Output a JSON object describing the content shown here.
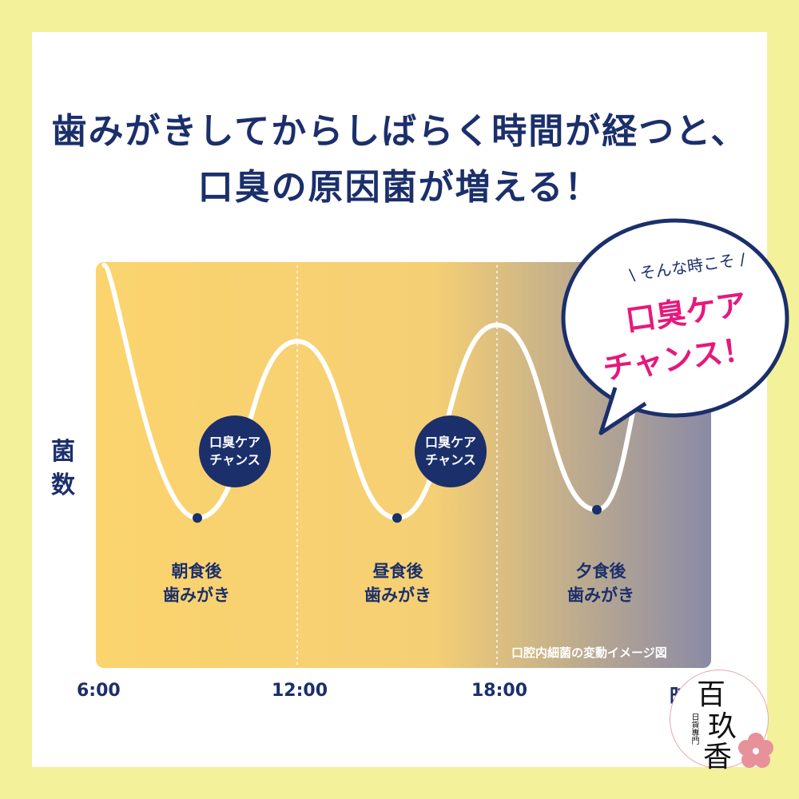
{
  "title": {
    "line1": "歯みがきしてからしばらく時間が経つと、",
    "line2": "口臭の原因菌が増える！"
  },
  "axes": {
    "ylabel_line1": "菌",
    "ylabel_line2": "数",
    "xlabel": "時間",
    "ticks": [
      "6:00",
      "12:00",
      "18:00"
    ]
  },
  "annotations": {
    "brushing": [
      {
        "line1": "朝食後",
        "line2": "歯みがき"
      },
      {
        "line1": "昼食後",
        "line2": "歯みがき"
      },
      {
        "line1": "夕食後",
        "line2": "歯みがき"
      }
    ],
    "badge": {
      "line1": "口臭ケア",
      "line2": "チャンス"
    },
    "caption": "口腔内細菌の変動イメージ図"
  },
  "bubble": {
    "lead": "\\ そんな時こそ /",
    "main_line1": "口臭ケア",
    "main_line2": "チャンス！"
  },
  "stamp": {
    "char1": "百",
    "char2": "玖",
    "char3": "香",
    "sub": "日貨專門"
  },
  "colors": {
    "navy": "#1b2f6b",
    "pink": "#e5197c",
    "panel_warm": "#fbd46e",
    "panel_cool": "#8a8aa6",
    "background": "#f3f199"
  },
  "chart_data": {
    "type": "line",
    "title": "歯みがきしてからしばらく時間が経つと、口臭の原因菌が増える！",
    "xlabel": "時間",
    "ylabel": "菌数",
    "x_ticks": [
      "6:00",
      "12:00",
      "18:00"
    ],
    "xlim_hours": [
      6,
      23
    ],
    "ylim": [
      0,
      1
    ],
    "y_scale": "relative (no numeric ticks)",
    "points": [
      {
        "t": 6.2,
        "y": 1.0
      },
      {
        "t": 9.0,
        "y": 0.07
      },
      {
        "t": 12.0,
        "y": 0.72
      },
      {
        "t": 15.0,
        "y": 0.07
      },
      {
        "t": 18.0,
        "y": 0.78
      },
      {
        "t": 21.0,
        "y": 0.1
      },
      {
        "t": 23.0,
        "y": 0.72
      }
    ],
    "markers_at_minima": [
      9.0,
      15.0,
      21.0
    ],
    "grid": "vertical dotted lines at 12:00 and 18:00",
    "legend": "none"
  }
}
